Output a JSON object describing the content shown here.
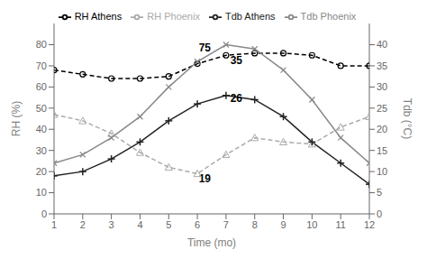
{
  "chart_data": {
    "type": "line",
    "x": [
      1,
      2,
      3,
      4,
      5,
      6,
      7,
      8,
      9,
      10,
      11,
      12
    ],
    "xlabel": "Time (mo)",
    "ylabel": "RH (%)",
    "y2label": "Tdb (°C)",
    "xlim": [
      1,
      12
    ],
    "xticks": [
      1,
      2,
      3,
      4,
      5,
      6,
      7,
      8,
      9,
      10,
      11,
      12
    ],
    "ylim": [
      0,
      90
    ],
    "yticks": [
      0,
      10,
      20,
      30,
      40,
      50,
      60,
      70,
      80
    ],
    "y2lim": [
      0,
      45
    ],
    "y2ticks": [
      0,
      5,
      10,
      15,
      20,
      25,
      30,
      35,
      40
    ],
    "grid": false,
    "legend": "top",
    "series": [
      {
        "name": "RH Phoenix",
        "color": "#aaaaaa",
        "line_style": "dashed",
        "marker": "triangle",
        "axis": "y",
        "values": [
          47,
          44,
          38,
          29,
          22,
          19,
          28,
          36,
          34,
          33,
          41,
          46
        ]
      },
      {
        "name": "RH Athens",
        "color": "#000000",
        "line_style": "dashed",
        "marker": "circle",
        "axis": "y",
        "values": [
          68,
          66,
          64,
          64,
          65,
          71,
          75,
          76,
          76,
          75,
          70,
          70
        ]
      },
      {
        "name": "Tdb Phoenix",
        "color": "#888888",
        "line_style": "solid",
        "marker": "x",
        "axis": "y2",
        "values": [
          12,
          14,
          18,
          23,
          30,
          36,
          40,
          39,
          34,
          27,
          18,
          12
        ]
      },
      {
        "name": "Tdb Athens",
        "color": "#222222",
        "line_style": "solid",
        "marker": "plus",
        "axis": "y2",
        "values": [
          9,
          10,
          13,
          17,
          22,
          26,
          28,
          27,
          23,
          17,
          12,
          7
        ]
      }
    ],
    "annotations": [
      {
        "x": 6.05,
        "y": 76,
        "text": "75"
      },
      {
        "x": 7.15,
        "y": 70,
        "text": "35"
      },
      {
        "x": 7.15,
        "y": 52,
        "text": "26"
      },
      {
        "x": 6.05,
        "y": 14,
        "text": "19"
      }
    ]
  }
}
